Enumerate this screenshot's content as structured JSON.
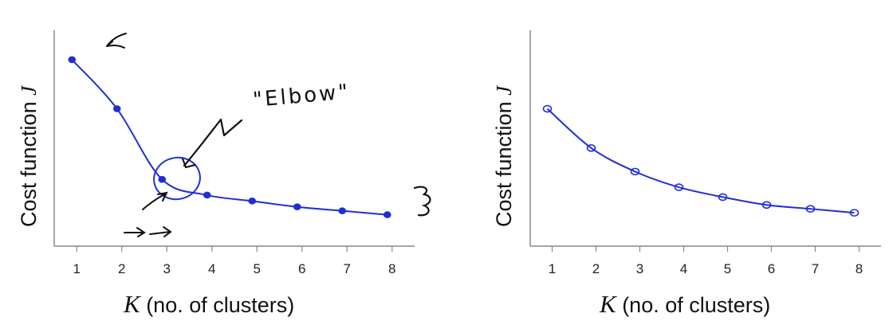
{
  "chart_data": [
    {
      "type": "line",
      "title": "",
      "xlabel_var": "K",
      "xlabel_text": " (no. of clusters)",
      "ylabel_text": "Cost function ",
      "ylabel_var": "J",
      "categories": [
        "1",
        "2",
        "3",
        "4",
        "5",
        "6",
        "7",
        "8"
      ],
      "x": [
        1,
        2,
        3,
        4,
        5,
        6,
        7,
        8
      ],
      "values": [
        9.5,
        7.0,
        3.4,
        2.6,
        2.3,
        2.0,
        1.8,
        1.6
      ],
      "xlim": [
        0.5,
        8.5
      ],
      "ylim": [
        0,
        11
      ],
      "grid": false,
      "line_color": "#1f2fd6",
      "annotations": {
        "elbow_label": "\"Elbow\""
      }
    },
    {
      "type": "line",
      "title": "",
      "xlabel_var": "K",
      "xlabel_text": " (no. of clusters)",
      "ylabel_text": "Cost function ",
      "ylabel_var": "J",
      "categories": [
        "1",
        "2",
        "3",
        "4",
        "5",
        "6",
        "7",
        "8"
      ],
      "x": [
        1,
        2,
        3,
        4,
        5,
        6,
        7,
        8
      ],
      "values": [
        7.0,
        5.0,
        3.8,
        3.0,
        2.5,
        2.1,
        1.9,
        1.7
      ],
      "xlim": [
        0.5,
        8.5
      ],
      "ylim": [
        0,
        11
      ],
      "grid": false,
      "line_color": "#1f2fd6"
    }
  ]
}
